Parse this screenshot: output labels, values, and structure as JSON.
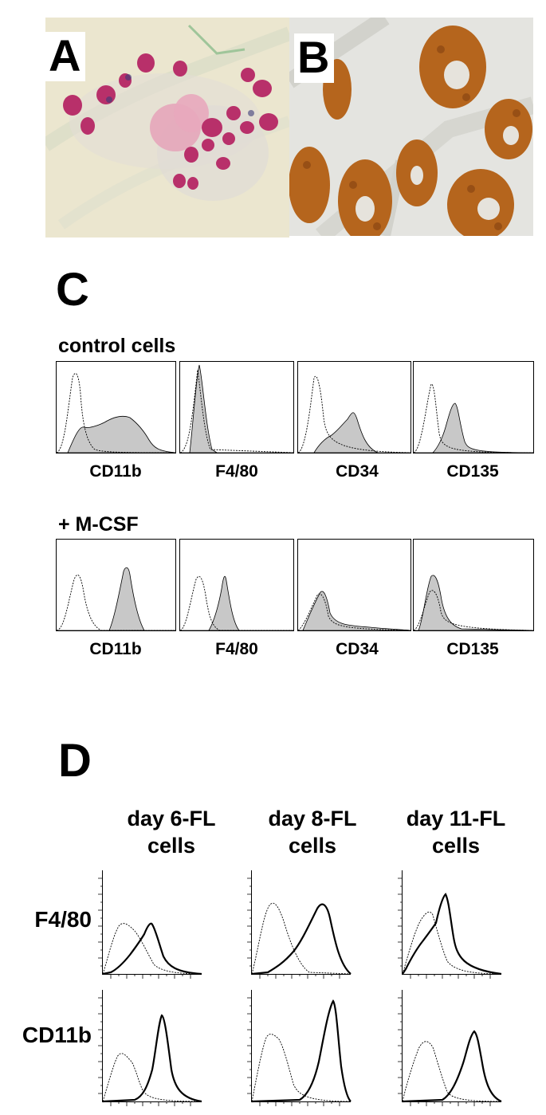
{
  "panels": {
    "A": {
      "letter": "A"
    },
    "B": {
      "letter": "B"
    },
    "C": {
      "letter": "C",
      "rows": [
        {
          "label": "control cells",
          "markers": [
            "CD11b",
            "F4/80",
            "CD34",
            "CD135"
          ]
        },
        {
          "label": "+ M-CSF",
          "markers": [
            "CD11b",
            "F4/80",
            "CD34",
            "CD135"
          ]
        }
      ]
    },
    "D": {
      "letter": "D",
      "columns": [
        {
          "line1": "day 6-FL",
          "line2": "cells"
        },
        {
          "line1": "day 8-FL",
          "line2": "cells"
        },
        {
          "line1": "day 11-FL",
          "line2": "cells"
        }
      ],
      "rows": [
        "F4/80",
        "CD11b"
      ]
    }
  },
  "colors": {
    "histogram_fill": "#c8c8c8",
    "panel_a_background": "#ebe6cf",
    "panel_a_nucleus": "#b8306a",
    "panel_b_stain": "#b5651d"
  }
}
